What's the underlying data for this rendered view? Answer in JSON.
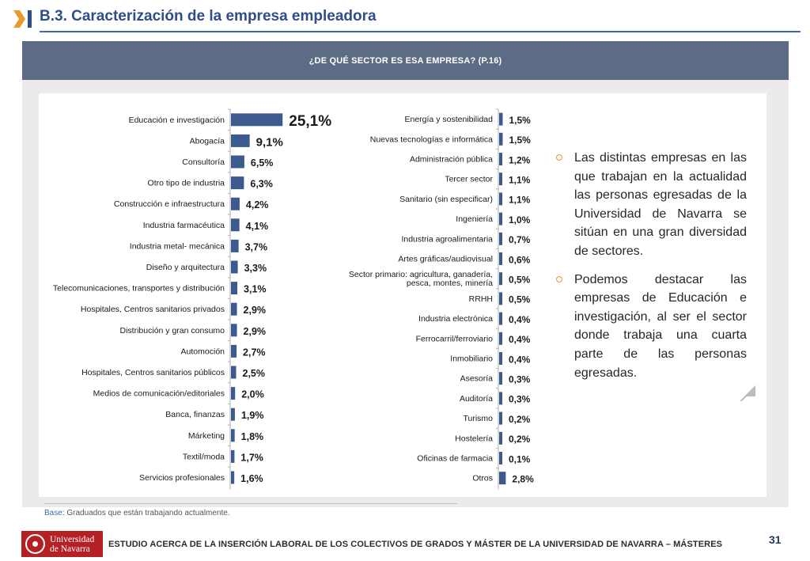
{
  "header": {
    "title": "B.3. Caracterización de la empresa empleadora"
  },
  "banner": {
    "question": "¿DE QUÉ SECTOR ES ESA EMPRESA? (P.16)"
  },
  "chart_data": [
    {
      "type": "bar",
      "orientation": "horizontal",
      "categories": [
        "Educación e investigación",
        "Abogacía",
        "Consultoría",
        "Otro tipo de industria",
        "Construcción e infraestructura",
        "Industria farmacéutica",
        "Industria metal- mecánica",
        "Diseño y arquitectura",
        "Telecomunicaciones, transportes y distribución",
        "Hospitales, Centros sanitarios privados",
        "Distribución y gran consumo",
        "Automoción",
        "Hospitales, Centros sanitarios públicos",
        "Medios de comunicación/editoriales",
        "Banca, finanzas",
        "Márketing",
        "Textil/moda",
        "Servicios profesionales"
      ],
      "values": [
        25.1,
        9.1,
        6.5,
        6.3,
        4.2,
        4.1,
        3.7,
        3.3,
        3.1,
        2.9,
        2.9,
        2.7,
        2.5,
        2.0,
        1.9,
        1.8,
        1.7,
        1.6
      ],
      "value_labels": [
        "25,1%",
        "9,1%",
        "6,5%",
        "6,3%",
        "4,2%",
        "4,1%",
        "3,7%",
        "3,3%",
        "3,1%",
        "2,9%",
        "2,9%",
        "2,7%",
        "2,5%",
        "2,0%",
        "1,9%",
        "1,8%",
        "1,7%",
        "1,6%"
      ],
      "bar_color": "#3d5a8f"
    },
    {
      "type": "bar",
      "orientation": "horizontal",
      "categories": [
        "Energía y sostenibilidad",
        "Nuevas tecnologías e informática",
        "Administración pública",
        "Tercer sector",
        "Sanitario (sin especificar)",
        "Ingeniería",
        "Industria agroalimentaria",
        "Artes gráficas/audiovisual",
        "Sector primario: agricultura, ganadería,\npesca, montes, minería",
        "RRHH",
        "Industria electrónica",
        "Ferrocarril/ferroviario",
        "Inmobiliario",
        "Asesoría",
        "Auditoría",
        "Turismo",
        "Hostelería",
        "Oficinas de farmacia",
        "Otros"
      ],
      "values": [
        1.5,
        1.5,
        1.2,
        1.1,
        1.1,
        1.0,
        0.7,
        0.6,
        0.5,
        0.5,
        0.4,
        0.4,
        0.4,
        0.3,
        0.3,
        0.2,
        0.2,
        0.1,
        2.8
      ],
      "value_labels": [
        "1,5%",
        "1,5%",
        "1,2%",
        "1,1%",
        "1,1%",
        "1,0%",
        "0,7%",
        "0,6%",
        "0,5%",
        "0,5%",
        "0,4%",
        "0,4%",
        "0,4%",
        "0,3%",
        "0,3%",
        "0,2%",
        "0,2%",
        "0,1%",
        "2,8%"
      ],
      "bar_color": "#3d5a8f"
    }
  ],
  "notes": [
    "Las distintas empresas en las que trabajan en la actualidad las personas egresadas de la Universidad de Navarra se sitúan en una gran diversidad de sectores.",
    "Podemos destacar las empresas de Educación e investigación, al ser el sector donde trabaja una cuarta parte de las personas egresadas."
  ],
  "base": {
    "label": "Base:",
    "text": " Graduados que están trabajando actualmente."
  },
  "footer": {
    "logo_line1": "Universidad",
    "logo_line2": "de Navarra",
    "study_title": "ESTUDIO ACERCA DE LA INSERCIÓN LABORAL DE LOS COLECTIVOS DE GRADOS Y MÁSTER DE LA UNIVERSIDAD DE NAVARRA – MÁSTERES",
    "page_number": "31"
  },
  "colors": {
    "accent": "#e89b2a",
    "title_blue": "#2f4e87",
    "banner": "#5d6c85"
  }
}
